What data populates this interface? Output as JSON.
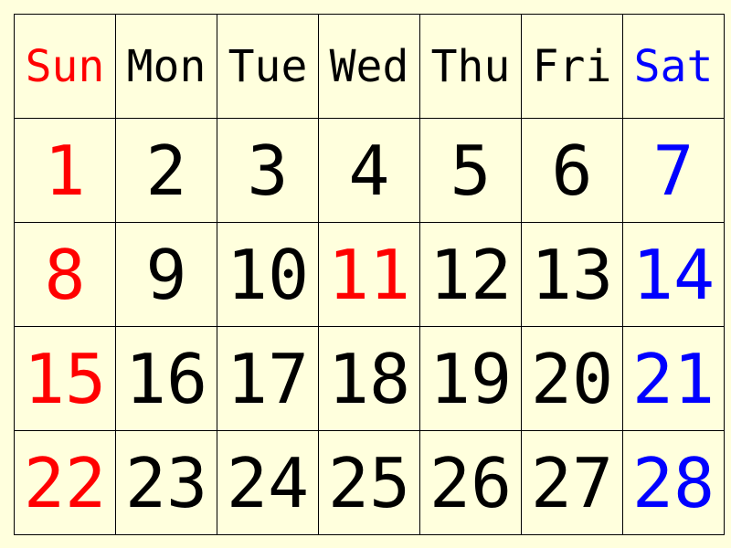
{
  "colors": {
    "background": "#ffffdd",
    "grid": "#000000",
    "default_text": "#000000",
    "holiday_red": "#ff0000",
    "saturday_blue": "#0000ff"
  },
  "weekdays": [
    "Sun",
    "Mon",
    "Tue",
    "Wed",
    "Thu",
    "Fri",
    "Sat"
  ],
  "weeks": [
    [
      {
        "day": "1",
        "color": "red"
      },
      {
        "day": "2",
        "color": "default"
      },
      {
        "day": "3",
        "color": "default"
      },
      {
        "day": "4",
        "color": "default"
      },
      {
        "day": "5",
        "color": "default"
      },
      {
        "day": "6",
        "color": "default"
      },
      {
        "day": "7",
        "color": "blue"
      }
    ],
    [
      {
        "day": "8",
        "color": "red"
      },
      {
        "day": "9",
        "color": "default"
      },
      {
        "day": "10",
        "color": "default"
      },
      {
        "day": "11",
        "color": "red"
      },
      {
        "day": "12",
        "color": "default"
      },
      {
        "day": "13",
        "color": "default"
      },
      {
        "day": "14",
        "color": "blue"
      }
    ],
    [
      {
        "day": "15",
        "color": "red"
      },
      {
        "day": "16",
        "color": "default"
      },
      {
        "day": "17",
        "color": "default"
      },
      {
        "day": "18",
        "color": "default"
      },
      {
        "day": "19",
        "color": "default"
      },
      {
        "day": "20",
        "color": "default"
      },
      {
        "day": "21",
        "color": "blue"
      }
    ],
    [
      {
        "day": "22",
        "color": "red"
      },
      {
        "day": "23",
        "color": "default"
      },
      {
        "day": "24",
        "color": "default"
      },
      {
        "day": "25",
        "color": "default"
      },
      {
        "day": "26",
        "color": "default"
      },
      {
        "day": "27",
        "color": "default"
      },
      {
        "day": "28",
        "color": "blue"
      }
    ]
  ]
}
